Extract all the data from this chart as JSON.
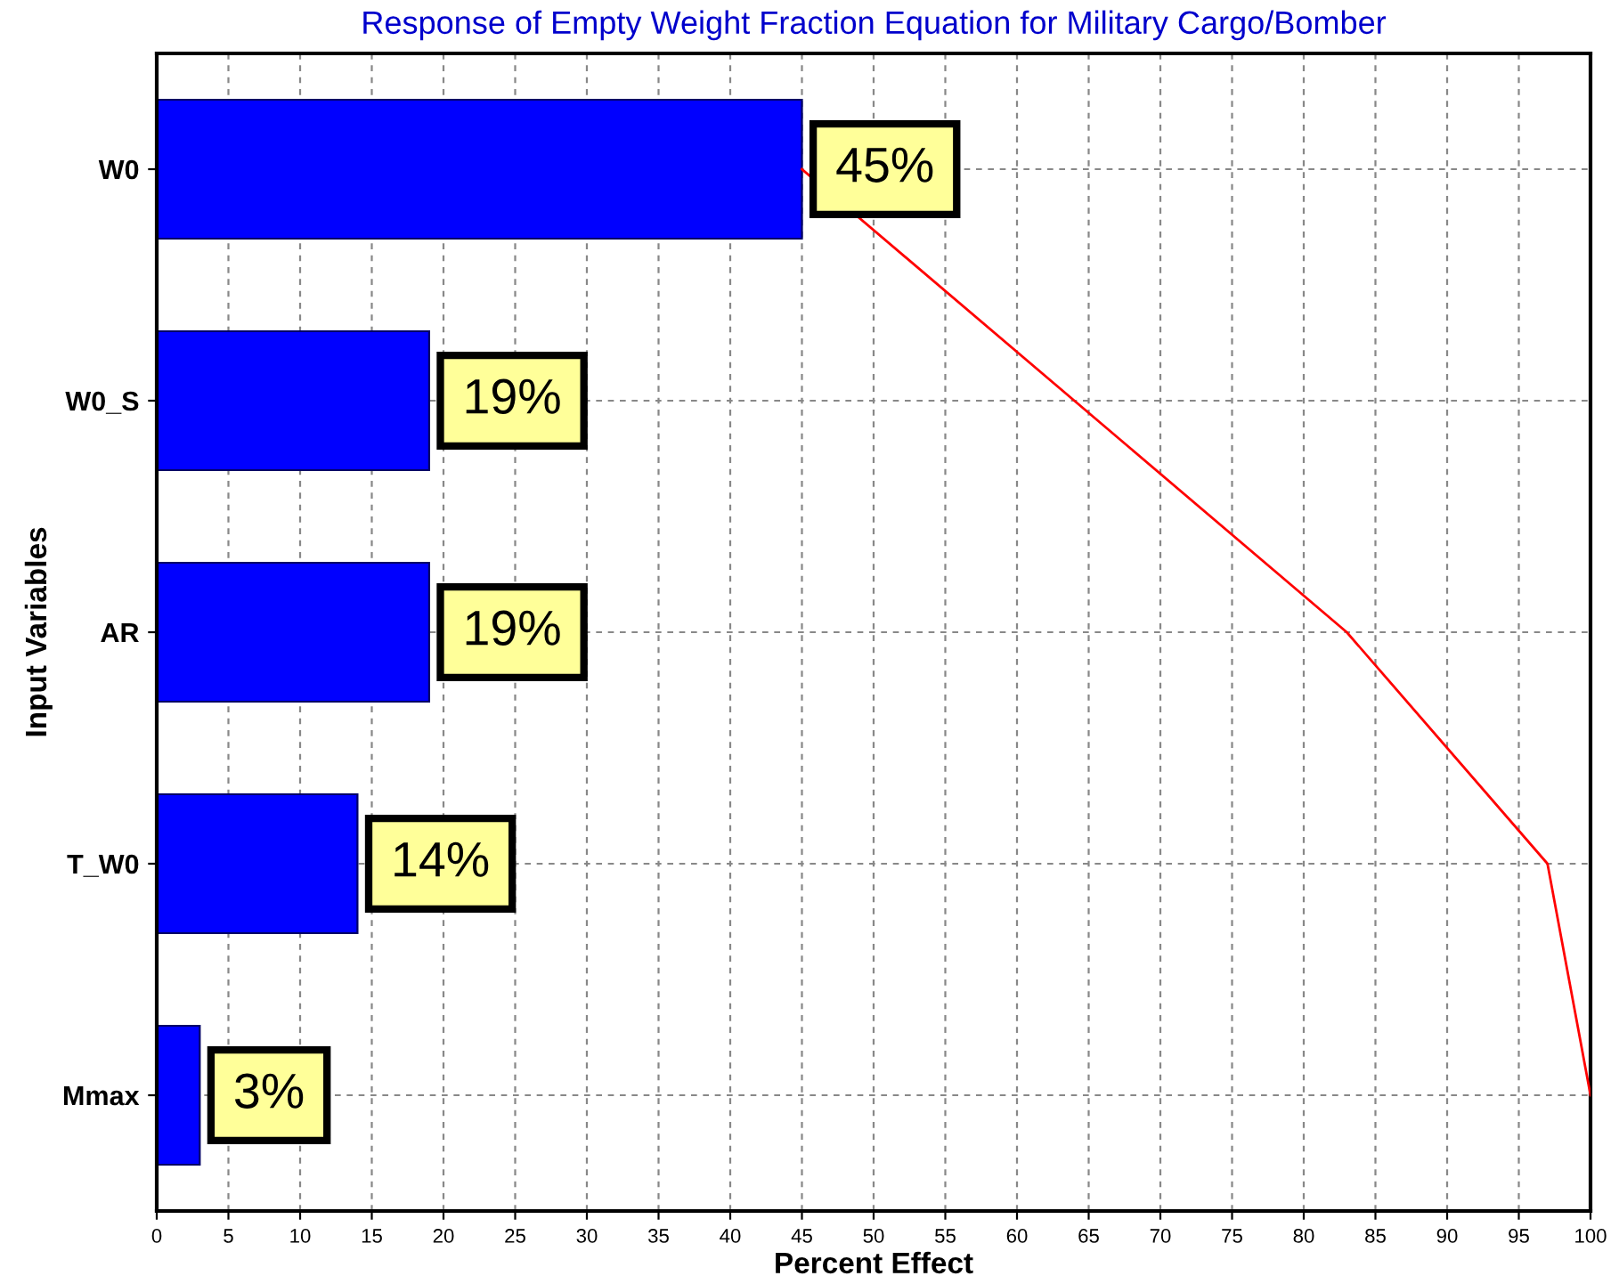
{
  "chart_data": {
    "type": "bar",
    "orientation": "horizontal",
    "title": "Response of Empty Weight Fraction Equation for Military Cargo/Bomber",
    "xlabel": "Percent Effect",
    "ylabel": "Input Variables",
    "categories": [
      "W0",
      "W0_S",
      "AR",
      "T_W0",
      "Mmax"
    ],
    "series": [
      {
        "color": "#0000ff",
        "values": [
          45,
          19,
          19,
          14,
          3
        ],
        "value_labels": [
          "45%",
          "19%",
          "19%",
          "14%",
          "3%"
        ]
      },
      {
        "type": "line",
        "color": "#ff0000",
        "values": [
          45,
          64,
          83,
          97,
          100
        ]
      }
    ],
    "xlim": [
      0,
      100
    ],
    "xticks": [
      0,
      5,
      10,
      15,
      20,
      25,
      30,
      35,
      40,
      45,
      50,
      55,
      60,
      65,
      70,
      75,
      80,
      85,
      90,
      95,
      100
    ],
    "grid": true,
    "line_style": "solid",
    "marker": "none"
  }
}
